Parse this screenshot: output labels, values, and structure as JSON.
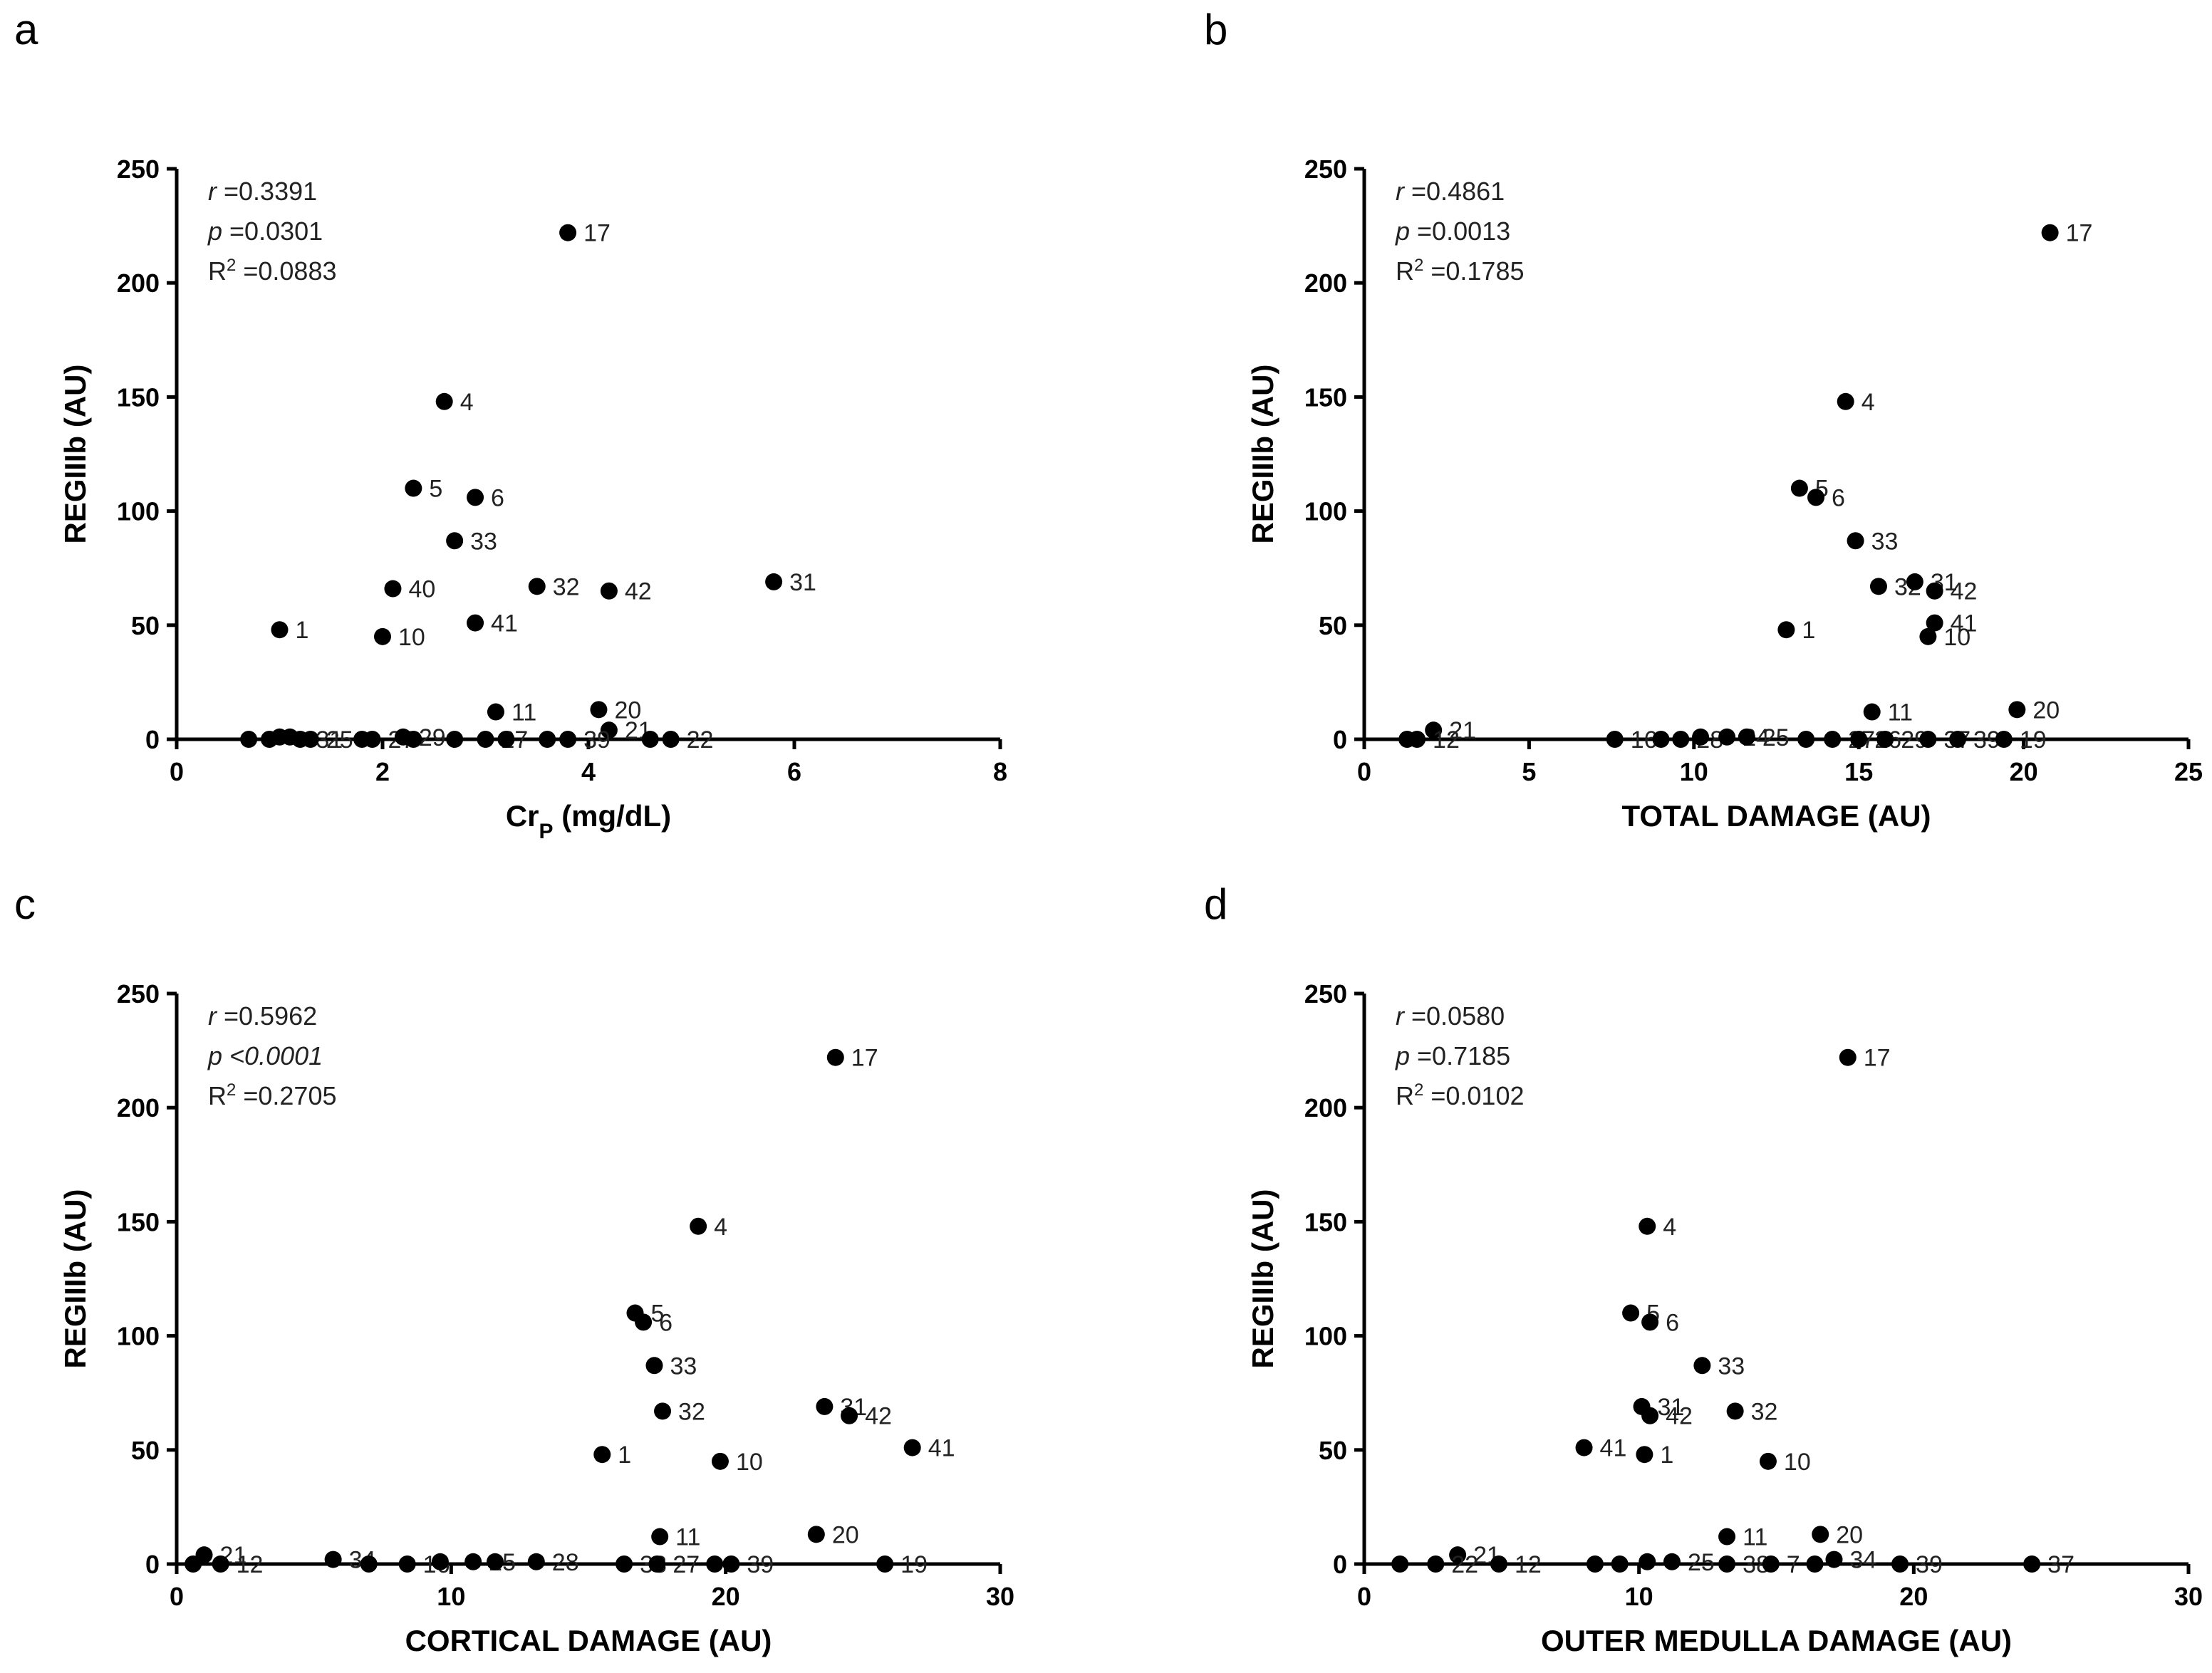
{
  "chart_data": [
    {
      "type": "scatter",
      "panel": "a",
      "xlabel": "Cr",
      "xlabel_sub": "P",
      "xlabel_suffix": " (mg/dL)",
      "ylabel": "REGIIIb (AU)",
      "xlim": [
        0,
        8
      ],
      "ylim": [
        0,
        250
      ],
      "xticks": [
        0,
        2,
        4,
        6,
        8
      ],
      "yticks": [
        0,
        50,
        100,
        150,
        200,
        250
      ],
      "stats": {
        "r_label": "r",
        "r": "=0.3391",
        "p_label": "p",
        "p": "=0.0301",
        "r2_label": "R",
        "r2_sup": "2",
        "r2": "=0.0883"
      },
      "points": [
        {
          "x": 3.8,
          "y": 222,
          "label": "17"
        },
        {
          "x": 2.6,
          "y": 148,
          "label": "4"
        },
        {
          "x": 2.3,
          "y": 110,
          "label": "5"
        },
        {
          "x": 2.9,
          "y": 106,
          "label": "6"
        },
        {
          "x": 2.7,
          "y": 87,
          "label": "33"
        },
        {
          "x": 2.1,
          "y": 66,
          "label": "40"
        },
        {
          "x": 3.5,
          "y": 67,
          "label": "32"
        },
        {
          "x": 4.2,
          "y": 65,
          "label": "42"
        },
        {
          "x": 5.8,
          "y": 69,
          "label": "31"
        },
        {
          "x": 1.0,
          "y": 48,
          "label": "1"
        },
        {
          "x": 2.0,
          "y": 45,
          "label": "10"
        },
        {
          "x": 2.9,
          "y": 51,
          "label": "41"
        },
        {
          "x": 3.1,
          "y": 12,
          "label": "11"
        },
        {
          "x": 4.1,
          "y": 13,
          "label": "20"
        },
        {
          "x": 4.2,
          "y": 4,
          "label": "21"
        },
        {
          "x": 0.7,
          "y": 0,
          "label": ""
        },
        {
          "x": 0.9,
          "y": 0,
          "label": ""
        },
        {
          "x": 1.0,
          "y": 1,
          "label": ""
        },
        {
          "x": 1.1,
          "y": 1,
          "label": ""
        },
        {
          "x": 1.2,
          "y": 0,
          "label": "31"
        },
        {
          "x": 1.3,
          "y": 0,
          "label": "25"
        },
        {
          "x": 1.8,
          "y": 0,
          "label": ""
        },
        {
          "x": 1.9,
          "y": 0,
          "label": "27"
        },
        {
          "x": 2.2,
          "y": 1,
          "label": "29"
        },
        {
          "x": 2.3,
          "y": 0,
          "label": ""
        },
        {
          "x": 2.7,
          "y": 0,
          "label": ""
        },
        {
          "x": 3.0,
          "y": 0,
          "label": "27"
        },
        {
          "x": 3.2,
          "y": 0,
          "label": ""
        },
        {
          "x": 3.6,
          "y": 0,
          "label": ""
        },
        {
          "x": 3.8,
          "y": 0,
          "label": "39"
        },
        {
          "x": 4.6,
          "y": 0,
          "label": ""
        },
        {
          "x": 4.8,
          "y": 0,
          "label": "22"
        }
      ]
    },
    {
      "type": "scatter",
      "panel": "b",
      "xlabel": "TOTAL DAMAGE (AU)",
      "ylabel": "REGIIIb (AU)",
      "xlim": [
        0,
        25
      ],
      "ylim": [
        0,
        250
      ],
      "xticks": [
        0,
        5,
        10,
        15,
        20,
        25
      ],
      "yticks": [
        0,
        50,
        100,
        150,
        200,
        250
      ],
      "stats": {
        "r_label": "r",
        "r": "=0.4861",
        "p_label": "p",
        "p": "=0.0013",
        "r2_label": "R",
        "r2_sup": "2",
        "r2": "=0.1785"
      },
      "points": [
        {
          "x": 20.8,
          "y": 222,
          "label": "17"
        },
        {
          "x": 14.6,
          "y": 148,
          "label": "4"
        },
        {
          "x": 13.2,
          "y": 110,
          "label": "5"
        },
        {
          "x": 13.7,
          "y": 106,
          "label": "6"
        },
        {
          "x": 14.9,
          "y": 87,
          "label": "33"
        },
        {
          "x": 15.6,
          "y": 67,
          "label": "32"
        },
        {
          "x": 16.7,
          "y": 69,
          "label": "31"
        },
        {
          "x": 17.3,
          "y": 65,
          "label": "42"
        },
        {
          "x": 12.8,
          "y": 48,
          "label": "1"
        },
        {
          "x": 17.3,
          "y": 51,
          "label": "41"
        },
        {
          "x": 17.1,
          "y": 45,
          "label": "10"
        },
        {
          "x": 15.4,
          "y": 12,
          "label": "11"
        },
        {
          "x": 19.8,
          "y": 13,
          "label": "20"
        },
        {
          "x": 2.1,
          "y": 4,
          "label": "21"
        },
        {
          "x": 1.3,
          "y": 0,
          "label": ""
        },
        {
          "x": 1.6,
          "y": 0,
          "label": "12"
        },
        {
          "x": 7.6,
          "y": 0,
          "label": "16"
        },
        {
          "x": 9.0,
          "y": 0,
          "label": ""
        },
        {
          "x": 9.6,
          "y": 0,
          "label": "28"
        },
        {
          "x": 10.2,
          "y": 1,
          "label": ""
        },
        {
          "x": 11.0,
          "y": 1,
          "label": "24"
        },
        {
          "x": 11.6,
          "y": 1,
          "label": "25"
        },
        {
          "x": 13.4,
          "y": 0,
          "label": ""
        },
        {
          "x": 14.2,
          "y": 0,
          "label": "27"
        },
        {
          "x": 15.0,
          "y": 0,
          "label": "26"
        },
        {
          "x": 15.8,
          "y": 0,
          "label": "29"
        },
        {
          "x": 17.1,
          "y": 0,
          "label": "37"
        },
        {
          "x": 18.0,
          "y": 0,
          "label": "39"
        },
        {
          "x": 19.4,
          "y": 0,
          "label": "19"
        }
      ]
    },
    {
      "type": "scatter",
      "panel": "c",
      "xlabel": "CORTICAL DAMAGE (AU)",
      "ylabel": "REGIIIb (AU)",
      "xlim": [
        0,
        30
      ],
      "ylim": [
        0,
        250
      ],
      "xticks": [
        0,
        10,
        20,
        30
      ],
      "yticks": [
        0,
        50,
        100,
        150,
        200,
        250
      ],
      "stats": {
        "r_label": "r",
        "r": "=0.5962",
        "p_label": "p",
        "p": "<0.0001",
        "r2_label": "R",
        "r2_sup": "2",
        "r2": "=0.2705"
      },
      "points": [
        {
          "x": 24.0,
          "y": 222,
          "label": "17"
        },
        {
          "x": 19.0,
          "y": 148,
          "label": "4"
        },
        {
          "x": 16.7,
          "y": 110,
          "label": "5"
        },
        {
          "x": 17.0,
          "y": 106,
          "label": "6"
        },
        {
          "x": 17.4,
          "y": 87,
          "label": "33"
        },
        {
          "x": 17.7,
          "y": 67,
          "label": "32"
        },
        {
          "x": 23.6,
          "y": 69,
          "label": "31"
        },
        {
          "x": 24.5,
          "y": 65,
          "label": "42"
        },
        {
          "x": 26.8,
          "y": 51,
          "label": "41"
        },
        {
          "x": 15.5,
          "y": 48,
          "label": "1"
        },
        {
          "x": 19.8,
          "y": 45,
          "label": "10"
        },
        {
          "x": 17.6,
          "y": 12,
          "label": "11"
        },
        {
          "x": 23.3,
          "y": 13,
          "label": "20"
        },
        {
          "x": 1.0,
          "y": 4,
          "label": "21"
        },
        {
          "x": 0.6,
          "y": 0,
          "label": ""
        },
        {
          "x": 1.6,
          "y": 0,
          "label": "12"
        },
        {
          "x": 5.7,
          "y": 2,
          "label": "34"
        },
        {
          "x": 7.0,
          "y": 0,
          "label": ""
        },
        {
          "x": 8.4,
          "y": 0,
          "label": "16"
        },
        {
          "x": 9.6,
          "y": 1,
          "label": ""
        },
        {
          "x": 10.8,
          "y": 1,
          "label": "25"
        },
        {
          "x": 11.6,
          "y": 1,
          "label": ""
        },
        {
          "x": 13.1,
          "y": 1,
          "label": "28"
        },
        {
          "x": 16.3,
          "y": 0,
          "label": "38"
        },
        {
          "x": 17.5,
          "y": 0,
          "label": "27"
        },
        {
          "x": 19.6,
          "y": 0,
          "label": ""
        },
        {
          "x": 20.2,
          "y": 0,
          "label": "39"
        },
        {
          "x": 25.8,
          "y": 0,
          "label": "19"
        }
      ]
    },
    {
      "type": "scatter",
      "panel": "d",
      "xlabel": "OUTER MEDULLA DAMAGE (AU)",
      "ylabel": "REGIIIb (AU)",
      "xlim": [
        0,
        30
      ],
      "ylim": [
        0,
        250
      ],
      "xticks": [
        0,
        10,
        20,
        30
      ],
      "yticks": [
        0,
        50,
        100,
        150,
        200,
        250
      ],
      "stats": {
        "r_label": "r",
        "r": "=0.0580",
        "p_label": "p",
        "p": "=0.7185",
        "r2_label": "R",
        "r2_sup": "2",
        "r2": "=0.0102"
      },
      "points": [
        {
          "x": 17.6,
          "y": 222,
          "label": "17"
        },
        {
          "x": 10.3,
          "y": 148,
          "label": "4"
        },
        {
          "x": 9.7,
          "y": 110,
          "label": "5"
        },
        {
          "x": 10.4,
          "y": 106,
          "label": "6"
        },
        {
          "x": 12.3,
          "y": 87,
          "label": "33"
        },
        {
          "x": 10.1,
          "y": 69,
          "label": "31"
        },
        {
          "x": 10.4,
          "y": 65,
          "label": "42"
        },
        {
          "x": 13.5,
          "y": 67,
          "label": "32"
        },
        {
          "x": 8.0,
          "y": 51,
          "label": "41"
        },
        {
          "x": 10.2,
          "y": 48,
          "label": "1"
        },
        {
          "x": 14.7,
          "y": 45,
          "label": "10"
        },
        {
          "x": 13.2,
          "y": 12,
          "label": "11"
        },
        {
          "x": 16.6,
          "y": 13,
          "label": "20"
        },
        {
          "x": 3.4,
          "y": 4,
          "label": "21"
        },
        {
          "x": 1.3,
          "y": 0,
          "label": ""
        },
        {
          "x": 2.6,
          "y": 0,
          "label": "22"
        },
        {
          "x": 4.9,
          "y": 0,
          "label": "12"
        },
        {
          "x": 8.4,
          "y": 0,
          "label": ""
        },
        {
          "x": 9.3,
          "y": 0,
          "label": ""
        },
        {
          "x": 10.3,
          "y": 1,
          "label": ""
        },
        {
          "x": 11.2,
          "y": 1,
          "label": "25"
        },
        {
          "x": 13.2,
          "y": 0,
          "label": "38"
        },
        {
          "x": 14.8,
          "y": 0,
          "label": "7"
        },
        {
          "x": 16.4,
          "y": 0,
          "label": ""
        },
        {
          "x": 17.1,
          "y": 2,
          "label": "34"
        },
        {
          "x": 19.5,
          "y": 0,
          "label": "39"
        },
        {
          "x": 24.3,
          "y": 0,
          "label": "37"
        }
      ]
    }
  ]
}
